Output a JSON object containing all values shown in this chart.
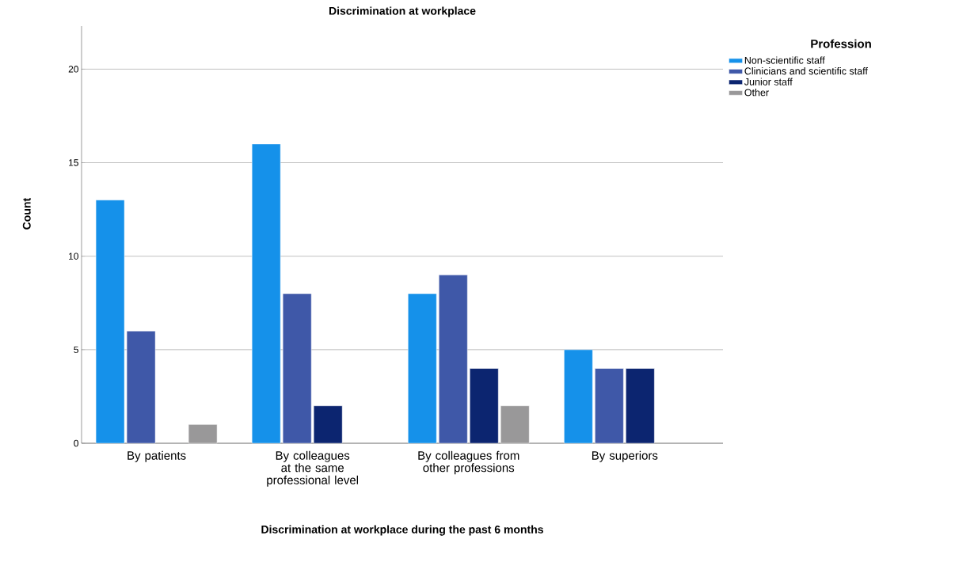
{
  "chart_data": {
    "type": "bar",
    "title": "Discrimination at workplace",
    "xlabel": "Discrimination at workplace during the past 6 months",
    "ylabel": "Count",
    "legend_title": "Profession",
    "categories": [
      "By patients",
      "By colleagues at the same professional level",
      "By colleagues from other professions",
      "By superiors"
    ],
    "series": [
      {
        "name": "Non-scientific staff",
        "color": "#1591ea",
        "values": [
          13,
          16,
          8,
          5
        ]
      },
      {
        "name": "Clinicians and scientific staff",
        "color": "#3f58a8",
        "values": [
          6,
          8,
          9,
          4
        ]
      },
      {
        "name": "Junior staff",
        "color": "#0c2570",
        "values": [
          null,
          2,
          4,
          4
        ]
      },
      {
        "name": "Other",
        "color": "#999899",
        "values": [
          1,
          null,
          2,
          null
        ]
      }
    ],
    "ylim": [
      0,
      22.3
    ],
    "yticks": [
      0,
      5,
      10,
      15,
      20
    ],
    "grid": "y",
    "legend": "top right"
  }
}
